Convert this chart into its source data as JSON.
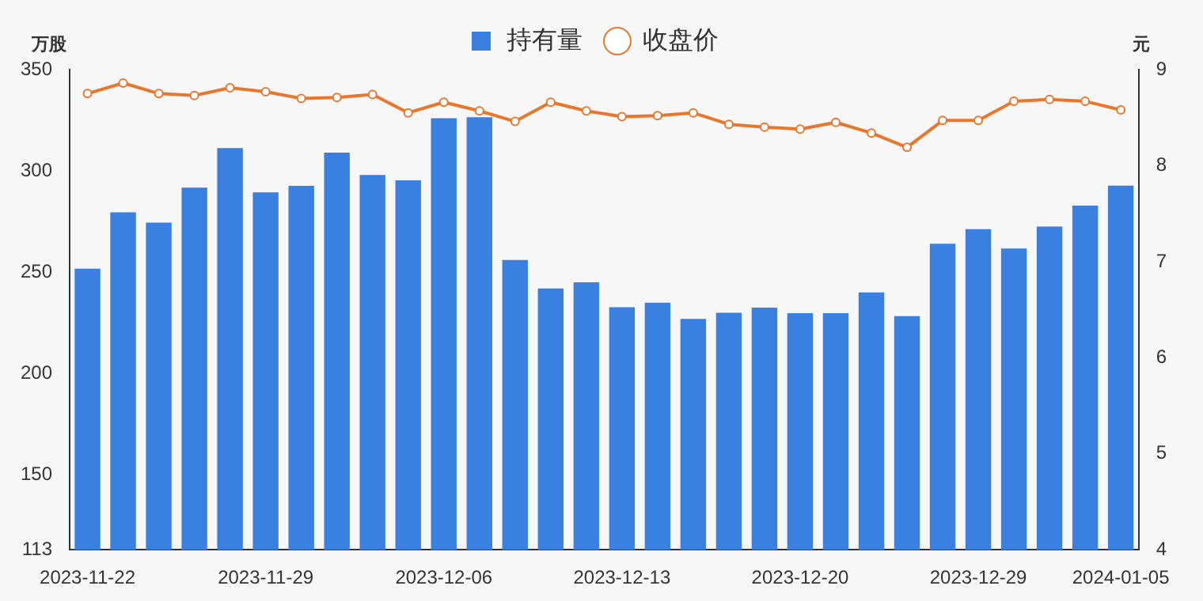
{
  "chart_data": {
    "type": "bar",
    "ylabel": "万股",
    "y2label": "元",
    "categories": [
      "2023-11-22",
      null,
      null,
      null,
      null,
      "2023-11-29",
      null,
      null,
      null,
      null,
      "2023-12-06",
      null,
      null,
      null,
      null,
      "2023-12-13",
      null,
      null,
      null,
      null,
      "2023-12-20",
      null,
      null,
      null,
      null,
      "2023-12-29",
      null,
      null,
      null,
      "2024-01-05"
    ],
    "series": [
      {
        "name": "持有量",
        "color": "#3a80e0",
        "values": [
          251.7,
          279.5,
          274.5,
          291.7,
          311.3,
          289.4,
          292.6,
          309,
          298,
          295.4,
          326,
          326.5,
          256,
          242,
          245,
          232.7,
          235,
          227,
          230,
          232.5,
          229.8,
          229.8,
          240,
          228.3,
          264,
          271.3,
          261.7,
          272.5,
          282.9,
          292.7
        ]
      },
      {
        "name": "收盘价",
        "type": "line",
        "axis": "y2",
        "color": "#e8772e",
        "marker": "circle",
        "values": [
          8.75,
          8.86,
          8.75,
          8.73,
          8.81,
          8.77,
          8.7,
          8.71,
          8.74,
          8.55,
          8.66,
          8.57,
          8.46,
          8.66,
          8.57,
          8.51,
          8.52,
          8.55,
          8.43,
          8.4,
          8.38,
          8.45,
          8.34,
          8.19,
          8.47,
          8.47,
          8.67,
          8.69,
          8.67,
          8.58
        ]
      }
    ],
    "ylim": [
      113,
      350
    ],
    "yticks": [
      113,
      150,
      200,
      250,
      300,
      350
    ],
    "y2lim": [
      4,
      9
    ],
    "y2ticks": [
      4,
      5,
      6,
      7,
      8,
      9
    ],
    "grid": false,
    "legend": "top"
  }
}
